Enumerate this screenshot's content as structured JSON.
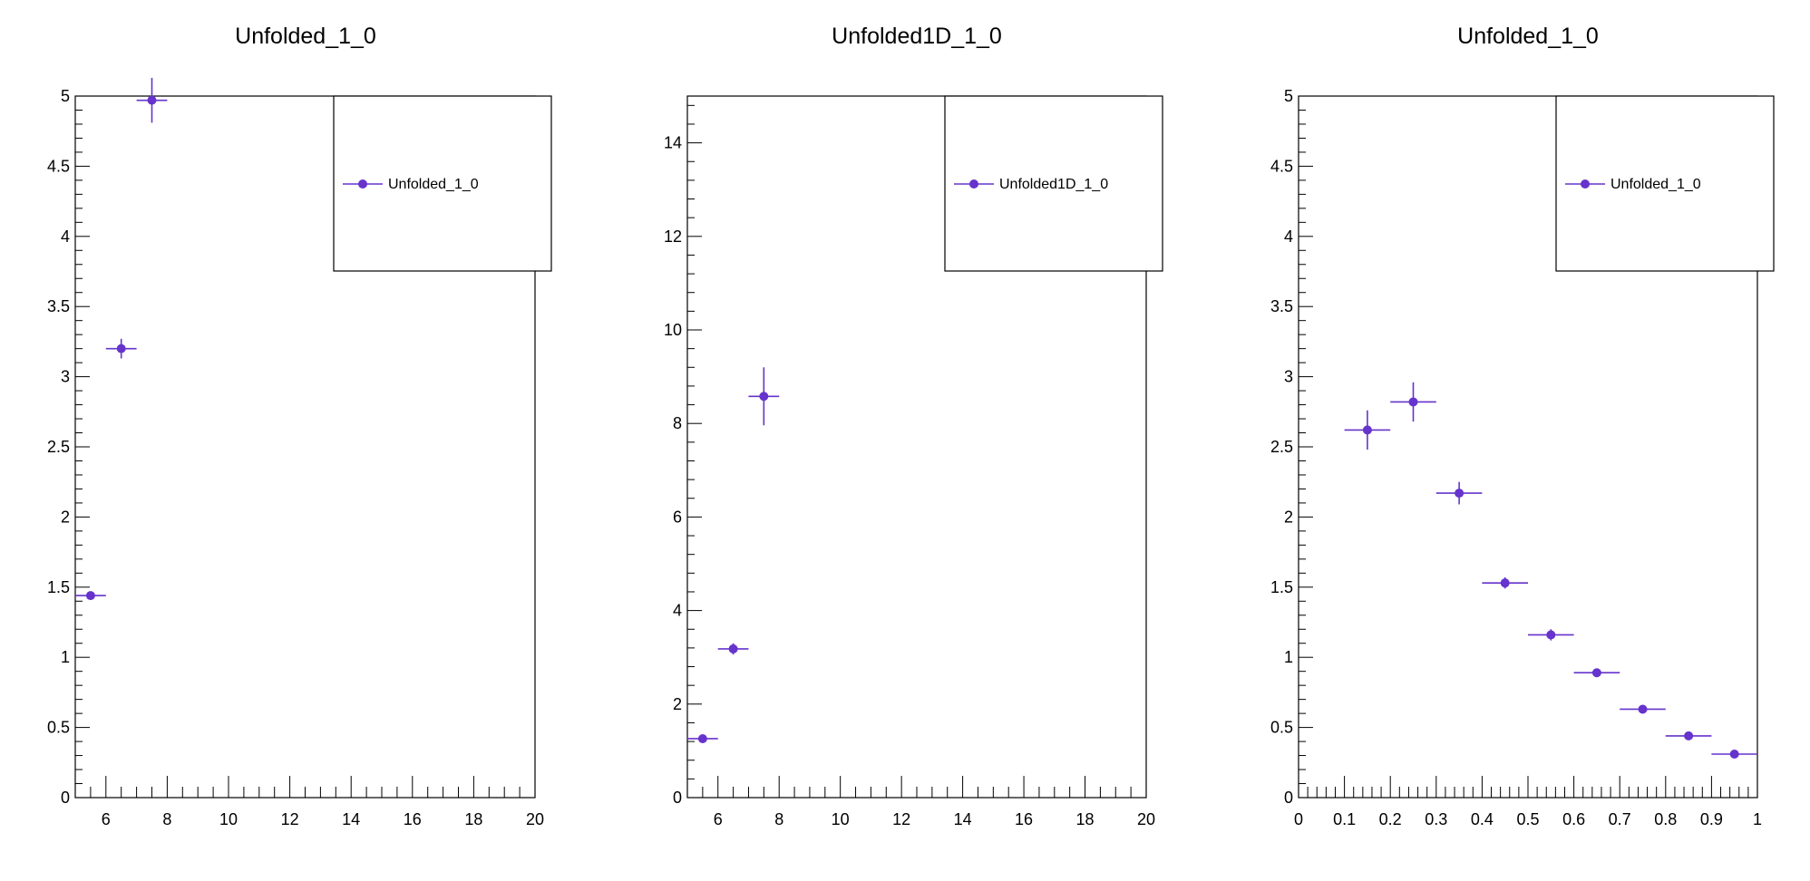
{
  "marker_color": "#6633cc",
  "chart_data": [
    {
      "type": "scatter",
      "title": "Unfolded_1_0",
      "xlim": [
        5,
        20
      ],
      "ylim": [
        0,
        5
      ],
      "x_ticks": [
        "6",
        "8",
        "10",
        "12",
        "14",
        "16",
        "18",
        "20"
      ],
      "y_ticks": [
        "0",
        "0.5",
        "1",
        "1.5",
        "2",
        "2.5",
        "3",
        "3.5",
        "4",
        "4.5",
        "5"
      ],
      "legend": "top-right",
      "series": [
        {
          "name": "Unfolded_1_0",
          "points": [
            {
              "x": 5.5,
              "y": 1.44,
              "xerr": 0.5,
              "yerr": 0.02
            },
            {
              "x": 6.5,
              "y": 3.2,
              "xerr": 0.5,
              "yerr": 0.07
            },
            {
              "x": 7.5,
              "y": 4.97,
              "xerr": 0.5,
              "yerr": 0.16
            }
          ]
        }
      ]
    },
    {
      "type": "scatter",
      "title": "Unfolded1D_1_0",
      "xlim": [
        5,
        20
      ],
      "ylim": [
        0,
        15
      ],
      "x_ticks": [
        "6",
        "8",
        "10",
        "12",
        "14",
        "16",
        "18",
        "20"
      ],
      "y_ticks": [
        "0",
        "2",
        "4",
        "6",
        "8",
        "10",
        "12",
        "14"
      ],
      "legend": "top-right",
      "series": [
        {
          "name": "Unfolded1D_1_0",
          "points": [
            {
              "x": 5.5,
              "y": 1.26,
              "xerr": 0.5,
              "yerr": 0.04
            },
            {
              "x": 6.5,
              "y": 3.18,
              "xerr": 0.5,
              "yerr": 0.12
            },
            {
              "x": 7.5,
              "y": 8.58,
              "xerr": 0.5,
              "yerr": 0.62
            }
          ]
        }
      ]
    },
    {
      "type": "scatter",
      "title": "Unfolded_1_0",
      "xlim": [
        0,
        1
      ],
      "ylim": [
        0,
        5
      ],
      "x_ticks": [
        "0",
        "0.1",
        "0.2",
        "0.3",
        "0.4",
        "0.5",
        "0.6",
        "0.7",
        "0.8",
        "0.9",
        "1"
      ],
      "y_ticks": [
        "0",
        "0.5",
        "1",
        "1.5",
        "2",
        "2.5",
        "3",
        "3.5",
        "4",
        "4.5",
        "5"
      ],
      "legend": "top-right",
      "series": [
        {
          "name": "Unfolded_1_0",
          "points": [
            {
              "x": 0.15,
              "y": 2.62,
              "xerr": 0.05,
              "yerr": 0.14
            },
            {
              "x": 0.25,
              "y": 2.82,
              "xerr": 0.05,
              "yerr": 0.14
            },
            {
              "x": 0.35,
              "y": 2.17,
              "xerr": 0.05,
              "yerr": 0.08
            },
            {
              "x": 0.45,
              "y": 1.53,
              "xerr": 0.05,
              "yerr": 0.04
            },
            {
              "x": 0.55,
              "y": 1.16,
              "xerr": 0.05,
              "yerr": 0.04
            },
            {
              "x": 0.65,
              "y": 0.89,
              "xerr": 0.05,
              "yerr": 0.02
            },
            {
              "x": 0.75,
              "y": 0.63,
              "xerr": 0.05,
              "yerr": 0.01
            },
            {
              "x": 0.85,
              "y": 0.44,
              "xerr": 0.05,
              "yerr": 0.01
            },
            {
              "x": 0.95,
              "y": 0.31,
              "xerr": 0.05,
              "yerr": 0.01
            }
          ]
        }
      ]
    }
  ]
}
